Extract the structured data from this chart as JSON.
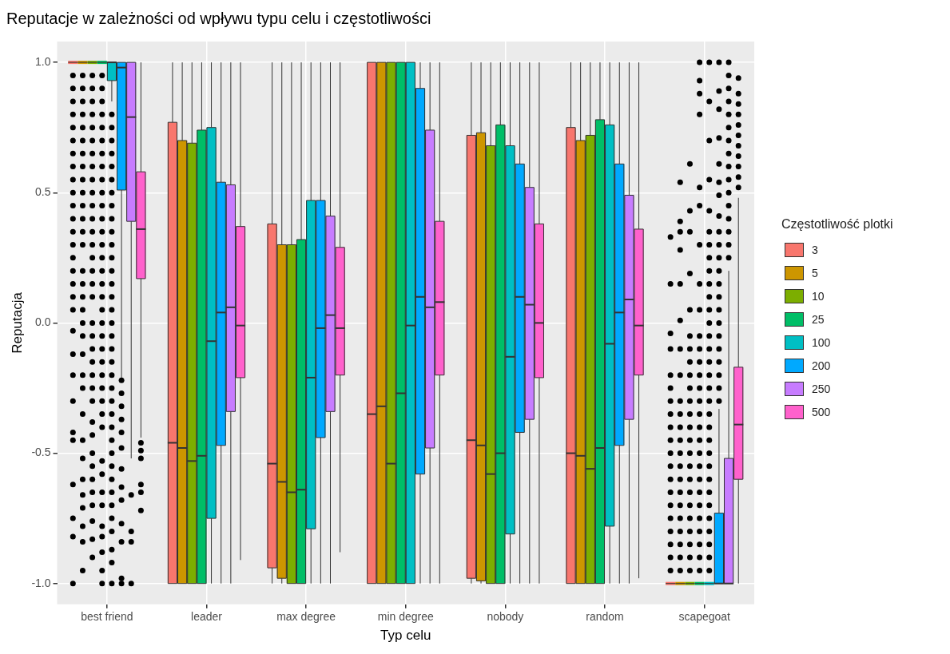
{
  "chart_data": {
    "type": "box",
    "title": "Reputacje w zależności od wpływu typu celu i częstotliwości",
    "xlabel": "Typ celu",
    "ylabel": "Reputacja",
    "legend_title": "Częstotliwość plotki",
    "legend": "right",
    "grid": true,
    "categories": [
      "best friend",
      "leader",
      "max degree",
      "min degree",
      "nobody",
      "random",
      "scapegoat"
    ],
    "ylim": [
      -1.08,
      1.08
    ],
    "yticks": [
      {
        "value": -1,
        "label": "-1.0"
      },
      {
        "value": -0.5,
        "label": "-0.5"
      },
      {
        "value": 0,
        "label": "0.0"
      },
      {
        "value": 0.5,
        "label": "0.5"
      },
      {
        "value": 1,
        "label": "1.0"
      }
    ],
    "series": [
      {
        "name": "3",
        "color": "#f8766d",
        "boxes": [
          {
            "low": 1,
            "q1": 1,
            "median": 1,
            "q3": 1,
            "high": 1,
            "outliers": [
              0.95,
              0.9,
              0.85,
              0.8,
              0.75,
              0.7,
              0.65,
              0.6,
              0.55,
              0.5,
              0.45,
              0.4,
              0.35,
              0.3,
              0.25,
              0.2,
              0.15,
              0.1,
              0.05,
              -0.03,
              -0.12,
              -0.2,
              -0.3,
              -0.42,
              -0.45,
              -0.62,
              -0.75,
              -0.82,
              -1
            ]
          },
          {
            "low": -1,
            "q1": -1,
            "median": -0.46,
            "q3": 0.77,
            "high": 1
          },
          {
            "low": -1,
            "q1": -0.94,
            "median": -0.54,
            "q3": 0.38,
            "high": 1
          },
          {
            "low": -1,
            "q1": -1,
            "median": -0.35,
            "q3": 1,
            "high": 1
          },
          {
            "low": -1,
            "q1": -0.98,
            "median": -0.45,
            "q3": 0.72,
            "high": 1
          },
          {
            "low": -1,
            "q1": -1,
            "median": -0.5,
            "q3": 0.75,
            "high": 1
          },
          {
            "low": -1,
            "q1": -1,
            "median": -1,
            "q3": -1,
            "high": -1,
            "outliers": [
              -0.95,
              -0.9,
              -0.85,
              -0.8,
              -0.75,
              -0.7,
              -0.65,
              -0.6,
              -0.55,
              -0.5,
              -0.45,
              -0.4,
              -0.35,
              -0.3,
              -0.25,
              -0.2,
              -0.1,
              -0.04,
              0.15,
              0.33
            ]
          }
        ]
      },
      {
        "name": "5",
        "color": "#cd9600",
        "boxes": [
          {
            "low": 1,
            "q1": 1,
            "median": 1,
            "q3": 1,
            "high": 1,
            "outliers": [
              0.95,
              0.9,
              0.85,
              0.8,
              0.75,
              0.7,
              0.65,
              0.6,
              0.55,
              0.5,
              0.45,
              0.4,
              0.35,
              0.3,
              0.2,
              0.15,
              0.1,
              0.05,
              0,
              -0.05,
              -0.12,
              -0.2,
              -0.25,
              -0.35,
              -0.45,
              -0.52,
              -0.6,
              -0.66,
              -0.71,
              -0.78,
              -0.84,
              -0.95
            ]
          },
          {
            "low": -1,
            "q1": -1,
            "median": -0.48,
            "q3": 0.7,
            "high": 1
          },
          {
            "low": -1,
            "q1": -0.98,
            "median": -0.61,
            "q3": 0.3,
            "high": 1
          },
          {
            "low": -1,
            "q1": -1,
            "median": -0.32,
            "q3": 1,
            "high": 1
          },
          {
            "low": -1,
            "q1": -0.99,
            "median": -0.47,
            "q3": 0.73,
            "high": 1
          },
          {
            "low": -1,
            "q1": -1,
            "median": -0.51,
            "q3": 0.7,
            "high": 1
          },
          {
            "low": -1,
            "q1": -1,
            "median": -1,
            "q3": -1,
            "high": -1,
            "outliers": [
              -0.95,
              -0.9,
              -0.85,
              -0.8,
              -0.75,
              -0.7,
              -0.65,
              -0.6,
              -0.55,
              -0.5,
              -0.45,
              -0.4,
              -0.35,
              -0.3,
              -0.2,
              -0.1,
              0.01,
              0.15,
              0.28,
              0.35,
              0.39,
              0.54
            ]
          }
        ]
      },
      {
        "name": "10",
        "color": "#7cae00",
        "boxes": [
          {
            "low": 1,
            "q1": 1,
            "median": 1,
            "q3": 1,
            "high": 1,
            "outliers": [
              0.95,
              0.9,
              0.85,
              0.8,
              0.75,
              0.7,
              0.65,
              0.6,
              0.55,
              0.5,
              0.45,
              0.4,
              0.35,
              0.3,
              0.25,
              0.2,
              0.15,
              0.1,
              0,
              -0.05,
              -0.1,
              -0.15,
              -0.2,
              -0.25,
              -0.3,
              -0.38,
              -0.43,
              -0.5,
              -0.55,
              -0.6,
              -0.65,
              -0.7,
              -0.76,
              -0.83,
              -0.9
            ]
          },
          {
            "low": -1,
            "q1": -1,
            "median": -0.53,
            "q3": 0.69,
            "high": 1
          },
          {
            "low": -1,
            "q1": -1,
            "median": -0.65,
            "q3": 0.3,
            "high": 1
          },
          {
            "low": -1,
            "q1": -1,
            "median": -0.54,
            "q3": 1,
            "high": 1
          },
          {
            "low": -1,
            "q1": -1,
            "median": -0.58,
            "q3": 0.68,
            "high": 1
          },
          {
            "low": -1,
            "q1": -1,
            "median": -0.56,
            "q3": 0.72,
            "high": 1
          },
          {
            "low": -1,
            "q1": -1,
            "median": -1,
            "q3": -1,
            "high": -1,
            "outliers": [
              -0.95,
              -0.9,
              -0.85,
              -0.8,
              -0.75,
              -0.7,
              -0.65,
              -0.6,
              -0.55,
              -0.5,
              -0.45,
              -0.4,
              -0.35,
              -0.3,
              -0.25,
              -0.2,
              -0.15,
              -0.1,
              -0.05,
              0.05,
              0.19,
              0.35,
              0.43,
              0.61
            ]
          }
        ]
      },
      {
        "name": "25",
        "color": "#00be67",
        "boxes": [
          {
            "low": 1,
            "q1": 1,
            "median": 1,
            "q3": 1,
            "high": 1,
            "outliers": [
              0.95,
              0.9,
              0.85,
              0.8,
              0.75,
              0.7,
              0.65,
              0.6,
              0.55,
              0.5,
              0.45,
              0.4,
              0.35,
              0.3,
              0.25,
              0.2,
              0.15,
              0.1,
              0.05,
              0,
              -0.05,
              -0.1,
              -0.15,
              -0.2,
              -0.25,
              -0.3,
              -0.35,
              -0.4,
              -0.53,
              -0.58,
              -0.65,
              -0.7,
              -0.78,
              -0.82,
              -0.88,
              -0.95,
              -1
            ]
          },
          {
            "low": -1,
            "q1": -1,
            "median": -0.51,
            "q3": 0.74,
            "high": 1
          },
          {
            "low": -1,
            "q1": -1,
            "median": -0.64,
            "q3": 0.32,
            "high": 1
          },
          {
            "low": -1,
            "q1": -1,
            "median": -0.27,
            "q3": 1,
            "high": 1
          },
          {
            "low": -1,
            "q1": -1,
            "median": -0.5,
            "q3": 0.76,
            "high": 1
          },
          {
            "low": -1,
            "q1": -1,
            "median": -0.48,
            "q3": 0.78,
            "high": 1
          },
          {
            "low": -1,
            "q1": -1,
            "median": -1,
            "q3": -1,
            "high": -1,
            "outliers": [
              -0.95,
              -0.9,
              -0.85,
              -0.8,
              -0.75,
              -0.7,
              -0.65,
              -0.6,
              -0.55,
              -0.5,
              -0.45,
              -0.4,
              -0.35,
              -0.3,
              -0.25,
              -0.2,
              -0.15,
              -0.1,
              -0.05,
              0.05,
              0.15,
              0.3,
              0.45,
              0.52,
              0.8,
              0.88,
              0.93,
              1
            ]
          }
        ]
      },
      {
        "name": "100",
        "color": "#00bfc4",
        "boxes": [
          {
            "low": 0.85,
            "q1": 0.93,
            "median": 1,
            "q3": 1,
            "high": 1,
            "outliers": [
              0.8,
              0.75,
              0.7,
              0.65,
              0.6,
              0.55,
              0.5,
              0.45,
              0.4,
              0.35,
              0.3,
              0.25,
              0.2,
              0.15,
              0.1,
              0.05,
              0,
              -0.05,
              -0.1,
              -0.15,
              -0.2,
              -0.25,
              -0.3,
              -0.35,
              -0.4,
              -0.45,
              -0.5,
              -0.55,
              -0.6,
              -0.65,
              -0.7,
              -0.75,
              -0.8,
              -0.87,
              -0.92,
              -1
            ]
          },
          {
            "low": -1,
            "q1": -0.75,
            "median": -0.07,
            "q3": 0.75,
            "high": 1
          },
          {
            "low": -1,
            "q1": -0.79,
            "median": -0.21,
            "q3": 0.47,
            "high": 1
          },
          {
            "low": -1,
            "q1": -1,
            "median": -0.01,
            "q3": 1,
            "high": 1
          },
          {
            "low": -1,
            "q1": -0.81,
            "median": -0.13,
            "q3": 0.68,
            "high": 1
          },
          {
            "low": -1,
            "q1": -0.78,
            "median": -0.08,
            "q3": 0.76,
            "high": 1
          },
          {
            "low": -1,
            "q1": -1,
            "median": -1,
            "q3": -1,
            "high": -1,
            "outliers": [
              -0.95,
              -0.9,
              -0.85,
              -0.8,
              -0.75,
              -0.7,
              -0.65,
              -0.6,
              -0.55,
              -0.5,
              -0.45,
              -0.4,
              -0.35,
              -0.3,
              -0.25,
              -0.2,
              -0.15,
              -0.1,
              -0.05,
              0,
              0.05,
              0.1,
              0.15,
              0.2,
              0.25,
              0.3,
              0.35,
              0.43,
              0.55,
              0.7,
              0.85,
              1
            ]
          }
        ]
      },
      {
        "name": "200",
        "color": "#00a9ff",
        "boxes": [
          {
            "low": -0.21,
            "q1": 0.51,
            "median": 0.98,
            "q3": 1,
            "high": 1,
            "outliers": [
              -0.22,
              -0.27,
              -0.32,
              -0.37,
              -0.42,
              -0.48,
              -0.56,
              -0.63,
              -0.68,
              -0.77,
              -0.84,
              -0.98,
              -1
            ]
          },
          {
            "low": -1,
            "q1": -0.47,
            "median": 0.04,
            "q3": 0.54,
            "high": 1
          },
          {
            "low": -1,
            "q1": -0.44,
            "median": -0.02,
            "q3": 0.47,
            "high": 1
          },
          {
            "low": -1,
            "q1": -0.58,
            "median": 0.1,
            "q3": 0.9,
            "high": 1
          },
          {
            "low": -1,
            "q1": -0.42,
            "median": 0.1,
            "q3": 0.61,
            "high": 1
          },
          {
            "low": -1,
            "q1": -0.47,
            "median": 0.04,
            "q3": 0.61,
            "high": 1
          },
          {
            "low": -1,
            "q1": -1,
            "median": -1,
            "q3": -0.73,
            "high": -0.33,
            "outliers": [
              -0.3,
              -0.25,
              -0.2,
              -0.15,
              -0.1,
              -0.05,
              0,
              0.05,
              0.1,
              0.15,
              0.2,
              0.25,
              0.3,
              0.35,
              0.41,
              0.49,
              0.54,
              0.61,
              0.71,
              0.82,
              0.89,
              1
            ]
          }
        ]
      },
      {
        "name": "250",
        "color": "#c77cff",
        "boxes": [
          {
            "low": -0.52,
            "q1": 0.39,
            "median": 0.79,
            "q3": 1,
            "high": 1,
            "outliers": [
              -0.66,
              -0.8,
              -0.84,
              -1
            ]
          },
          {
            "low": -1,
            "q1": -0.34,
            "median": 0.06,
            "q3": 0.53,
            "high": 1
          },
          {
            "low": -1,
            "q1": -0.34,
            "median": 0.03,
            "q3": 0.41,
            "high": 1
          },
          {
            "low": -1,
            "q1": -0.48,
            "median": 0.06,
            "q3": 0.74,
            "high": 1
          },
          {
            "low": -1,
            "q1": -0.37,
            "median": 0.07,
            "q3": 0.52,
            "high": 1
          },
          {
            "low": -1,
            "q1": -0.37,
            "median": 0.09,
            "q3": 0.49,
            "high": 1
          },
          {
            "low": -1,
            "q1": -1,
            "median": -1,
            "q3": -0.52,
            "high": 0.2,
            "outliers": [
              0.25,
              0.3,
              0.35,
              0.4,
              0.45,
              0.5,
              0.55,
              0.6,
              0.65,
              0.7,
              0.75,
              0.8,
              0.85,
              0.9,
              0.95,
              1
            ]
          }
        ]
      },
      {
        "name": "500",
        "color": "#ff61cc",
        "boxes": [
          {
            "low": -0.44,
            "q1": 0.17,
            "median": 0.36,
            "q3": 0.58,
            "high": 1,
            "outliers": [
              -0.46,
              -0.49,
              -0.52,
              -0.62,
              -0.65,
              -0.72
            ]
          },
          {
            "low": -0.91,
            "q1": -0.21,
            "median": -0.01,
            "q3": 0.37,
            "high": 1
          },
          {
            "low": -0.88,
            "q1": -0.2,
            "median": -0.02,
            "q3": 0.29,
            "high": 1
          },
          {
            "low": -1,
            "q1": -0.2,
            "median": 0.08,
            "q3": 0.39,
            "high": 1
          },
          {
            "low": -1,
            "q1": -0.21,
            "median": 0,
            "q3": 0.38,
            "high": 1
          },
          {
            "low": -0.98,
            "q1": -0.2,
            "median": -0.01,
            "q3": 0.36,
            "high": 1
          },
          {
            "low": -1,
            "q1": -0.6,
            "median": -0.39,
            "q3": -0.17,
            "high": 0.48,
            "outliers": [
              0.52,
              0.56,
              0.6,
              0.64,
              0.68,
              0.72,
              0.76,
              0.8,
              0.84,
              0.88,
              0.94
            ]
          }
        ]
      }
    ]
  }
}
